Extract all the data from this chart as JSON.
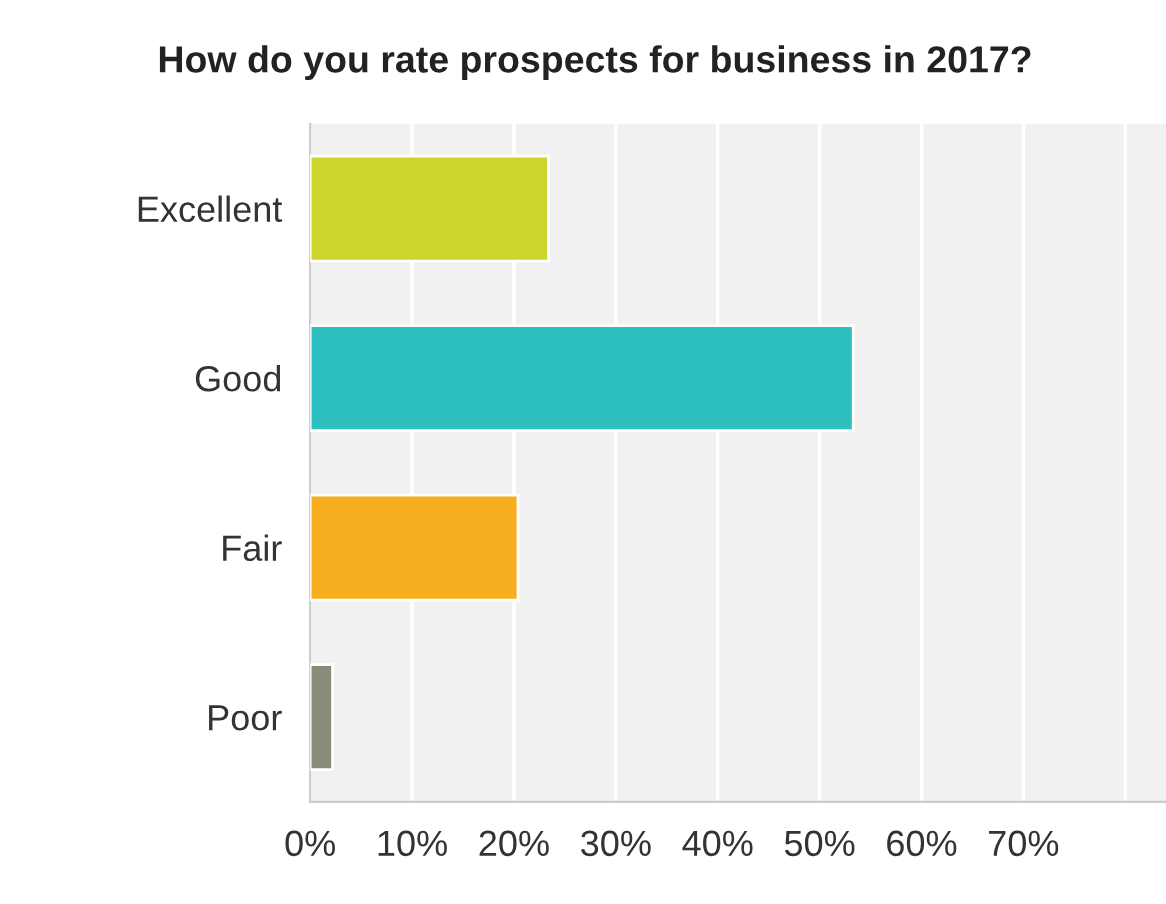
{
  "chart_data": {
    "type": "bar",
    "orientation": "horizontal",
    "title": "How do you rate prospects for business in 2017?",
    "categories": [
      "Excellent",
      "Good",
      "Fair",
      "Poor"
    ],
    "values": [
      23.4,
      53.3,
      20.4,
      2.2
    ],
    "colors": [
      "#cdd52a",
      "#2ebfbf",
      "#f6ae1e",
      "#8b8b7a"
    ],
    "xlim": [
      0,
      84
    ],
    "xticks": [
      {
        "value": 0,
        "label": "0%"
      },
      {
        "value": 10,
        "label": "10%"
      },
      {
        "value": 20,
        "label": "20%"
      },
      {
        "value": 30,
        "label": "30%"
      },
      {
        "value": 40,
        "label": "40%"
      },
      {
        "value": 50,
        "label": "50%"
      },
      {
        "value": 60,
        "label": "60%"
      },
      {
        "value": 70,
        "label": "70%"
      },
      {
        "value": 80,
        "label": null
      }
    ],
    "grid": "x",
    "legend": false
  }
}
